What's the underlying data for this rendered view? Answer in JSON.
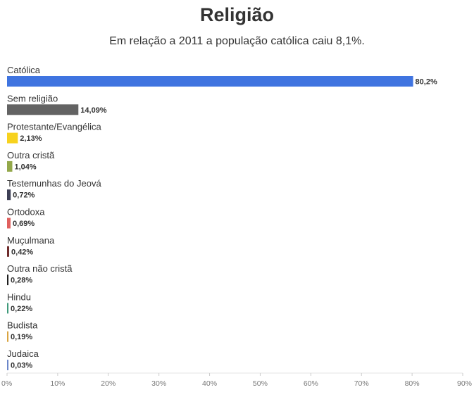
{
  "chart_data": {
    "type": "bar",
    "orientation": "horizontal",
    "title": "Religião",
    "subtitle": "Em relação a 2011 a população católica caiu 8,1%.",
    "xlim": [
      0,
      90
    ],
    "x_ticks": [
      "0%",
      "10%",
      "20%",
      "30%",
      "40%",
      "50%",
      "60%",
      "70%",
      "80%",
      "90%"
    ],
    "grid": false,
    "categories": [
      {
        "label": "Católica",
        "value": 80.2,
        "value_label": "80,2%",
        "color": "#3f74e0"
      },
      {
        "label": "Sem religião",
        "value": 14.09,
        "value_label": "14,09%",
        "color": "#636363"
      },
      {
        "label": "Protestante/Evangélica",
        "value": 2.13,
        "value_label": "2,13%",
        "color": "#f7d21e"
      },
      {
        "label": "Outra cristã",
        "value": 1.04,
        "value_label": "1,04%",
        "color": "#93a84a"
      },
      {
        "label": "Testemunhas do Jeová",
        "value": 0.72,
        "value_label": "0,72%",
        "color": "#3d3f55"
      },
      {
        "label": "Ortodoxa",
        "value": 0.69,
        "value_label": "0,69%",
        "color": "#e0605e"
      },
      {
        "label": "Muçulmana",
        "value": 0.42,
        "value_label": "0,42%",
        "color": "#6e2b2b"
      },
      {
        "label": "Outra não cristã",
        "value": 0.28,
        "value_label": "0,28%",
        "color": "#1e1e1e"
      },
      {
        "label": "Hindu",
        "value": 0.22,
        "value_label": "0,22%",
        "color": "#3f9a7a"
      },
      {
        "label": "Budista",
        "value": 0.19,
        "value_label": "0,19%",
        "color": "#d9a441"
      },
      {
        "label": "Judaica",
        "value": 0.03,
        "value_label": "0,03%",
        "color": "#6b86c9"
      }
    ]
  }
}
